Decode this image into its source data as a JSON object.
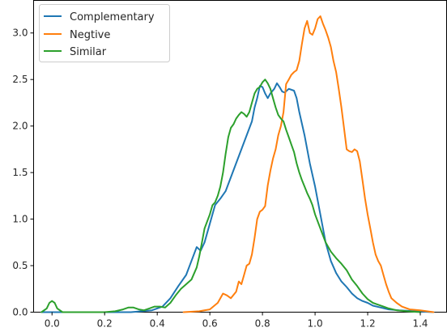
{
  "chart_data": {
    "type": "line",
    "xlim": [
      -0.07,
      1.5
    ],
    "ylim": [
      0,
      3.35
    ],
    "xticks": [
      0.0,
      0.2,
      0.4,
      0.6,
      0.8,
      1.0,
      1.2,
      1.4
    ],
    "xtick_labels": [
      "0.0",
      "0.2",
      "0.4",
      "0.6",
      "0.8",
      "1.0",
      "1.2",
      "1.4"
    ],
    "yticks": [
      0.0,
      0.5,
      1.0,
      1.5,
      2.0,
      2.5,
      3.0
    ],
    "ytick_labels": [
      "0.0",
      "0.5",
      "1.0",
      "1.5",
      "2.0",
      "2.5",
      "3.0"
    ],
    "grid": false,
    "legend_position": "top-left",
    "series": [
      {
        "name": "Complementary",
        "color": "#1f77b4",
        "points": [
          [
            -0.04,
            0.0
          ],
          [
            0.1,
            0.0
          ],
          [
            0.3,
            0.0
          ],
          [
            0.38,
            0.02
          ],
          [
            0.42,
            0.06
          ],
          [
            0.45,
            0.15
          ],
          [
            0.48,
            0.28
          ],
          [
            0.51,
            0.4
          ],
          [
            0.53,
            0.55
          ],
          [
            0.55,
            0.7
          ],
          [
            0.565,
            0.66
          ],
          [
            0.58,
            0.75
          ],
          [
            0.6,
            0.95
          ],
          [
            0.62,
            1.15
          ],
          [
            0.64,
            1.22
          ],
          [
            0.66,
            1.3
          ],
          [
            0.68,
            1.45
          ],
          [
            0.7,
            1.6
          ],
          [
            0.72,
            1.75
          ],
          [
            0.74,
            1.9
          ],
          [
            0.76,
            2.05
          ],
          [
            0.77,
            2.2
          ],
          [
            0.78,
            2.3
          ],
          [
            0.79,
            2.43
          ],
          [
            0.8,
            2.42
          ],
          [
            0.81,
            2.35
          ],
          [
            0.82,
            2.3
          ],
          [
            0.83,
            2.35
          ],
          [
            0.845,
            2.4
          ],
          [
            0.855,
            2.46
          ],
          [
            0.865,
            2.42
          ],
          [
            0.875,
            2.37
          ],
          [
            0.885,
            2.36
          ],
          [
            0.9,
            2.4
          ],
          [
            0.92,
            2.38
          ],
          [
            0.93,
            2.3
          ],
          [
            0.94,
            2.15
          ],
          [
            0.96,
            1.9
          ],
          [
            0.98,
            1.6
          ],
          [
            1.0,
            1.35
          ],
          [
            1.02,
            1.05
          ],
          [
            1.04,
            0.75
          ],
          [
            1.06,
            0.55
          ],
          [
            1.08,
            0.42
          ],
          [
            1.1,
            0.33
          ],
          [
            1.12,
            0.27
          ],
          [
            1.14,
            0.2
          ],
          [
            1.16,
            0.15
          ],
          [
            1.18,
            0.12
          ],
          [
            1.2,
            0.1
          ],
          [
            1.22,
            0.07
          ],
          [
            1.25,
            0.05
          ],
          [
            1.28,
            0.03
          ],
          [
            1.32,
            0.02
          ],
          [
            1.38,
            0.01
          ],
          [
            1.45,
            0.0
          ]
        ]
      },
      {
        "name": "Negtive",
        "color": "#ff7f0e",
        "points": [
          [
            0.5,
            0.0
          ],
          [
            0.56,
            0.01
          ],
          [
            0.6,
            0.03
          ],
          [
            0.63,
            0.1
          ],
          [
            0.65,
            0.2
          ],
          [
            0.665,
            0.18
          ],
          [
            0.68,
            0.15
          ],
          [
            0.7,
            0.22
          ],
          [
            0.71,
            0.33
          ],
          [
            0.72,
            0.3
          ],
          [
            0.73,
            0.4
          ],
          [
            0.74,
            0.5
          ],
          [
            0.75,
            0.52
          ],
          [
            0.76,
            0.62
          ],
          [
            0.77,
            0.8
          ],
          [
            0.78,
            1.0
          ],
          [
            0.79,
            1.08
          ],
          [
            0.8,
            1.1
          ],
          [
            0.81,
            1.14
          ],
          [
            0.82,
            1.36
          ],
          [
            0.83,
            1.52
          ],
          [
            0.84,
            1.65
          ],
          [
            0.85,
            1.75
          ],
          [
            0.86,
            1.9
          ],
          [
            0.87,
            2.0
          ],
          [
            0.88,
            2.15
          ],
          [
            0.89,
            2.45
          ],
          [
            0.9,
            2.5
          ],
          [
            0.91,
            2.55
          ],
          [
            0.92,
            2.58
          ],
          [
            0.93,
            2.6
          ],
          [
            0.94,
            2.7
          ],
          [
            0.95,
            2.88
          ],
          [
            0.96,
            3.05
          ],
          [
            0.97,
            3.13
          ],
          [
            0.98,
            3.0
          ],
          [
            0.99,
            2.98
          ],
          [
            1.0,
            3.05
          ],
          [
            1.01,
            3.15
          ],
          [
            1.02,
            3.18
          ],
          [
            1.03,
            3.1
          ],
          [
            1.04,
            3.03
          ],
          [
            1.05,
            2.95
          ],
          [
            1.06,
            2.85
          ],
          [
            1.07,
            2.7
          ],
          [
            1.08,
            2.58
          ],
          [
            1.09,
            2.4
          ],
          [
            1.1,
            2.2
          ],
          [
            1.11,
            1.98
          ],
          [
            1.12,
            1.75
          ],
          [
            1.13,
            1.73
          ],
          [
            1.14,
            1.72
          ],
          [
            1.15,
            1.75
          ],
          [
            1.16,
            1.73
          ],
          [
            1.17,
            1.62
          ],
          [
            1.18,
            1.42
          ],
          [
            1.19,
            1.22
          ],
          [
            1.2,
            1.05
          ],
          [
            1.21,
            0.9
          ],
          [
            1.22,
            0.75
          ],
          [
            1.23,
            0.62
          ],
          [
            1.24,
            0.55
          ],
          [
            1.25,
            0.5
          ],
          [
            1.26,
            0.4
          ],
          [
            1.27,
            0.3
          ],
          [
            1.28,
            0.22
          ],
          [
            1.29,
            0.15
          ],
          [
            1.31,
            0.1
          ],
          [
            1.33,
            0.06
          ],
          [
            1.36,
            0.03
          ],
          [
            1.4,
            0.02
          ],
          [
            1.45,
            0.0
          ]
        ]
      },
      {
        "name": "Similar",
        "color": "#2ca02c",
        "points": [
          [
            -0.04,
            0.0
          ],
          [
            -0.02,
            0.04
          ],
          [
            -0.01,
            0.1
          ],
          [
            0.0,
            0.12
          ],
          [
            0.01,
            0.1
          ],
          [
            0.02,
            0.04
          ],
          [
            0.04,
            0.0
          ],
          [
            0.2,
            0.0
          ],
          [
            0.24,
            0.01
          ],
          [
            0.27,
            0.03
          ],
          [
            0.29,
            0.05
          ],
          [
            0.31,
            0.05
          ],
          [
            0.33,
            0.03
          ],
          [
            0.35,
            0.02
          ],
          [
            0.37,
            0.04
          ],
          [
            0.39,
            0.06
          ],
          [
            0.41,
            0.06
          ],
          [
            0.43,
            0.05
          ],
          [
            0.45,
            0.1
          ],
          [
            0.47,
            0.18
          ],
          [
            0.49,
            0.25
          ],
          [
            0.51,
            0.3
          ],
          [
            0.53,
            0.35
          ],
          [
            0.55,
            0.48
          ],
          [
            0.56,
            0.6
          ],
          [
            0.57,
            0.75
          ],
          [
            0.58,
            0.9
          ],
          [
            0.6,
            1.05
          ],
          [
            0.61,
            1.15
          ],
          [
            0.62,
            1.18
          ],
          [
            0.63,
            1.25
          ],
          [
            0.64,
            1.35
          ],
          [
            0.65,
            1.5
          ],
          [
            0.66,
            1.7
          ],
          [
            0.67,
            1.88
          ],
          [
            0.68,
            1.98
          ],
          [
            0.69,
            2.02
          ],
          [
            0.7,
            2.08
          ],
          [
            0.71,
            2.12
          ],
          [
            0.72,
            2.15
          ],
          [
            0.73,
            2.13
          ],
          [
            0.74,
            2.1
          ],
          [
            0.75,
            2.15
          ],
          [
            0.76,
            2.25
          ],
          [
            0.77,
            2.35
          ],
          [
            0.78,
            2.4
          ],
          [
            0.79,
            2.42
          ],
          [
            0.8,
            2.47
          ],
          [
            0.81,
            2.5
          ],
          [
            0.82,
            2.46
          ],
          [
            0.83,
            2.4
          ],
          [
            0.84,
            2.3
          ],
          [
            0.85,
            2.2
          ],
          [
            0.86,
            2.12
          ],
          [
            0.87,
            2.08
          ],
          [
            0.88,
            2.05
          ],
          [
            0.89,
            1.96
          ],
          [
            0.9,
            1.88
          ],
          [
            0.91,
            1.8
          ],
          [
            0.92,
            1.72
          ],
          [
            0.93,
            1.6
          ],
          [
            0.94,
            1.5
          ],
          [
            0.95,
            1.42
          ],
          [
            0.96,
            1.35
          ],
          [
            0.97,
            1.28
          ],
          [
            0.98,
            1.22
          ],
          [
            0.99,
            1.15
          ],
          [
            1.0,
            1.05
          ],
          [
            1.02,
            0.9
          ],
          [
            1.04,
            0.75
          ],
          [
            1.06,
            0.65
          ],
          [
            1.08,
            0.58
          ],
          [
            1.1,
            0.52
          ],
          [
            1.12,
            0.45
          ],
          [
            1.14,
            0.35
          ],
          [
            1.16,
            0.28
          ],
          [
            1.18,
            0.2
          ],
          [
            1.2,
            0.14
          ],
          [
            1.22,
            0.1
          ],
          [
            1.24,
            0.08
          ],
          [
            1.26,
            0.06
          ],
          [
            1.28,
            0.04
          ],
          [
            1.31,
            0.02
          ],
          [
            1.35,
            0.01
          ],
          [
            1.4,
            0.0
          ]
        ]
      }
    ]
  }
}
